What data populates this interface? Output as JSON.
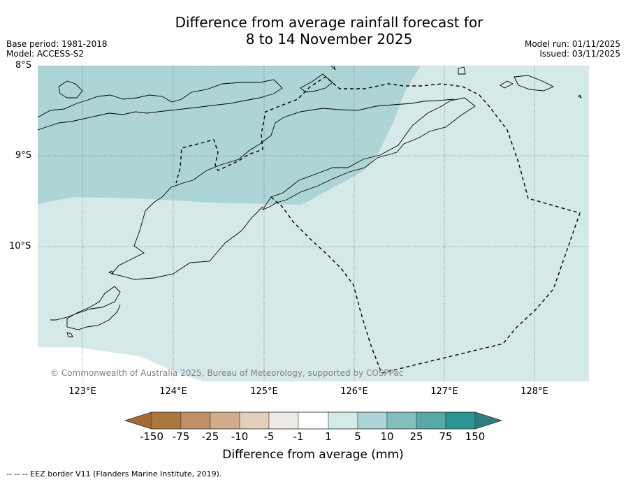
{
  "title": {
    "line1": "Difference from average rainfall forecast for",
    "line2": "8 to 14 November 2025"
  },
  "meta": {
    "base_period": "Base period: 1981-2018",
    "model": "Model: ACCESS-S2",
    "model_run": "Model run: 01/11/2025",
    "issued": "Issued: 03/11/2025"
  },
  "map": {
    "lat_labels": [
      "8°S",
      "9°S",
      "10°S"
    ],
    "lon_labels": [
      "123°E",
      "124°E",
      "125°E",
      "126°E",
      "127°E",
      "128°E"
    ],
    "copyright": "© Commonwealth of Australia 2025, Bureau of Meteorology, supported by COSPPac",
    "zones": [
      {
        "name": "difference 5 to 10 mm",
        "color": "#aed5d5"
      },
      {
        "name": "difference 1 to 5 mm",
        "color": "#d5e9e8"
      }
    ]
  },
  "legend": {
    "title": "Difference from average (mm)",
    "ticks": [
      "-150",
      "-75",
      "-25",
      "-10",
      "-5",
      "-1",
      "1",
      "5",
      "10",
      "25",
      "75",
      "150"
    ],
    "colors": [
      "#a56b34",
      "#ab773e",
      "#bf9168",
      "#d2ad8b",
      "#e2cfbc",
      "#eeebe6",
      "#ffffff",
      "#d5e9e8",
      "#aed5d5",
      "#85bfbd",
      "#58a8a8",
      "#2a9593",
      "#2d7f7c"
    ],
    "footnote": "--  --  -- EEZ border V11 (Flanders Marine Institute, 2019)."
  }
}
